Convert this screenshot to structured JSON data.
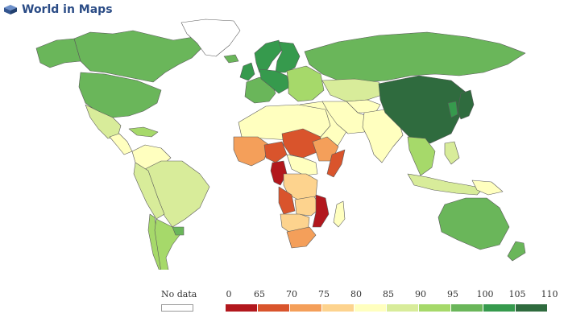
{
  "brand": {
    "title": "World in Maps"
  },
  "legend": {
    "no_data_label": "No data",
    "ticks": [
      "0",
      "65",
      "70",
      "75",
      "80",
      "85",
      "90",
      "95",
      "100",
      "105",
      "110"
    ],
    "colors": [
      "#b2171d",
      "#d9542c",
      "#f49f5a",
      "#fdd38e",
      "#ffffbf",
      "#d8ec9a",
      "#a6d96a",
      "#6ab65a",
      "#369a4d",
      "#2f6b3e"
    ]
  },
  "palette": {
    "ocean": "#ffffff",
    "border": "#5a5a5a",
    "no_data": "#ffffff",
    "brand": "#2b4c86"
  },
  "regions": [
    {
      "name": "Canada",
      "level": 8
    },
    {
      "name": "Alaska",
      "level": 8
    },
    {
      "name": "Greenland",
      "level": "nodata"
    },
    {
      "name": "United States",
      "level": 8
    },
    {
      "name": "Mexico",
      "level": 6
    },
    {
      "name": "Central America",
      "level": 5
    },
    {
      "name": "Caribbean",
      "level": 7
    },
    {
      "name": "Colombia/Venezuela",
      "level": 5
    },
    {
      "name": "Brazil",
      "level": 6
    },
    {
      "name": "Peru/Bolivia",
      "level": 6
    },
    {
      "name": "Chile",
      "level": 7
    },
    {
      "name": "Argentina",
      "level": 7
    },
    {
      "name": "Uruguay",
      "level": 8
    },
    {
      "name": "Iceland",
      "level": 8
    },
    {
      "name": "Norway",
      "level": 9
    },
    {
      "name": "Sweden/Finland",
      "level": 9
    },
    {
      "name": "UK/Ireland",
      "level": 9
    },
    {
      "name": "Western Europe",
      "level": 8
    },
    {
      "name": "Central Europe",
      "level": 9
    },
    {
      "name": "Eastern Europe",
      "level": 7
    },
    {
      "name": "Russia",
      "level": 8
    },
    {
      "name": "Kazakhstan",
      "level": 6
    },
    {
      "name": "Central Asia",
      "level": 5
    },
    {
      "name": "Middle East",
      "level": 5
    },
    {
      "name": "Iran/Afghanistan",
      "level": 5
    },
    {
      "name": "Pakistan/India",
      "level": 5
    },
    {
      "name": "China/Mongolia",
      "level": 10
    },
    {
      "name": "Korea",
      "level": 9
    },
    {
      "name": "Japan",
      "level": 10
    },
    {
      "name": "Southeast Asia",
      "level": 7
    },
    {
      "name": "Indonesia",
      "level": 6
    },
    {
      "name": "Philippines",
      "level": 6
    },
    {
      "name": "Papua New Guinea",
      "level": 5
    },
    {
      "name": "Australia",
      "level": 8
    },
    {
      "name": "New Zealand",
      "level": 8
    },
    {
      "name": "North Africa",
      "level": 5
    },
    {
      "name": "West Africa",
      "level": 3
    },
    {
      "name": "Nigeria",
      "level": 2
    },
    {
      "name": "Chad/Sudan",
      "level": 2
    },
    {
      "name": "Ethiopia",
      "level": 3
    },
    {
      "name": "Somalia",
      "level": 2
    },
    {
      "name": "Central Africa",
      "level": 5
    },
    {
      "name": "Cameroon/Gabon",
      "level": 1
    },
    {
      "name": "DR Congo",
      "level": 4
    },
    {
      "name": "Angola",
      "level": 2
    },
    {
      "name": "Zambia",
      "level": 4
    },
    {
      "name": "Mozambique",
      "level": 1
    },
    {
      "name": "Namibia/Botswana",
      "level": 4
    },
    {
      "name": "South Africa",
      "level": 3
    },
    {
      "name": "Madagascar",
      "level": 5
    }
  ]
}
